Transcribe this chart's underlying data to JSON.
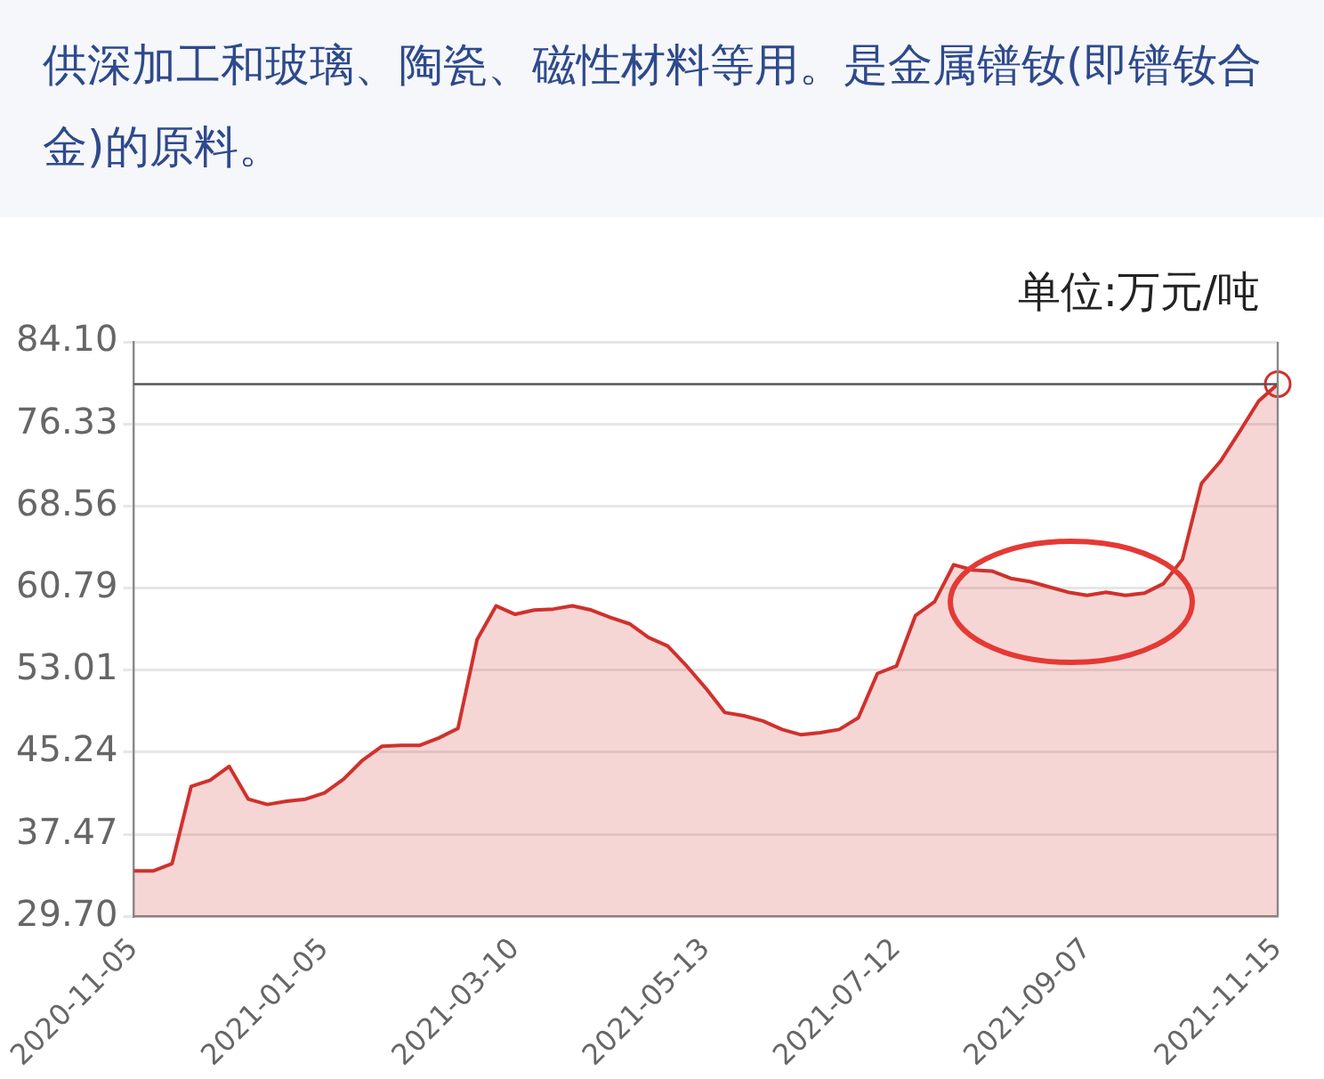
{
  "chart_data": {
    "type": "area",
    "title": "供深加工和玻璃、陶瓷、磁性材料等用。是金属镨钕(即镨钕合金)的原料。",
    "ylabel": "单位:万元/吨",
    "categories": [
      "2020-11-05",
      null,
      null,
      null,
      null,
      null,
      null,
      null,
      null,
      null,
      "2021-01-05",
      null,
      null,
      null,
      null,
      null,
      null,
      null,
      null,
      null,
      "2021-03-10",
      null,
      null,
      null,
      null,
      null,
      null,
      null,
      null,
      null,
      "2021-05-13",
      null,
      null,
      null,
      null,
      null,
      null,
      null,
      null,
      null,
      "2021-07-12",
      null,
      null,
      null,
      null,
      null,
      null,
      null,
      null,
      null,
      "2021-09-07",
      null,
      null,
      null,
      null,
      null,
      null,
      null,
      null,
      null,
      "2021-11-15"
    ],
    "series": [
      {
        "color": "#d0312d",
        "values": [
          34.0,
          34.0,
          34.7,
          42.0,
          42.6,
          43.9,
          40.8,
          40.3,
          40.6,
          40.8,
          41.4,
          42.7,
          44.5,
          45.8,
          45.9,
          45.9,
          46.6,
          47.5,
          55.9,
          59.1,
          58.3,
          58.7,
          58.8,
          59.1,
          58.7,
          58.0,
          57.4,
          56.1,
          55.3,
          53.4,
          51.3,
          49.0,
          48.7,
          48.2,
          47.4,
          46.9,
          47.1,
          47.4,
          48.5,
          52.7,
          53.4,
          58.2,
          59.5,
          63.0,
          62.5,
          62.4,
          61.7,
          61.4,
          60.9,
          60.4,
          60.1,
          60.4,
          60.1,
          60.3,
          61.2,
          63.5,
          70.7,
          72.8,
          75.6,
          78.5,
          80.1
        ]
      },
      {
        "type": "scatter",
        "color": "#d0312d",
        "marker": "circle",
        "values": [
          null,
          null,
          null,
          null,
          null,
          null,
          null,
          null,
          null,
          null,
          null,
          null,
          null,
          null,
          null,
          null,
          null,
          null,
          null,
          null,
          null,
          null,
          null,
          null,
          null,
          null,
          null,
          null,
          null,
          null,
          null,
          null,
          null,
          null,
          null,
          null,
          null,
          null,
          null,
          null,
          null,
          null,
          null,
          null,
          null,
          null,
          null,
          null,
          null,
          null,
          null,
          null,
          null,
          null,
          null,
          null,
          null,
          null,
          null,
          null,
          80.1
        ]
      }
    ],
    "ylim": [
      29.7,
      84.1
    ],
    "yticks": [
      {
        "value": 29.7,
        "label": "29.70"
      },
      {
        "value": 37.47,
        "label": "37.47"
      },
      {
        "value": 45.24,
        "label": "45.24"
      },
      {
        "value": 53.01,
        "label": "53.01"
      },
      {
        "value": 60.79,
        "label": "60.79"
      },
      {
        "value": 68.56,
        "label": "68.56"
      },
      {
        "value": 76.33,
        "label": "76.33"
      },
      {
        "value": 84.1,
        "label": "84.10"
      }
    ],
    "ref_lines": [
      {
        "axis": "y",
        "value": 80.1,
        "color": "#555555"
      }
    ],
    "grid": "y",
    "legend": false,
    "marker": "none"
  }
}
